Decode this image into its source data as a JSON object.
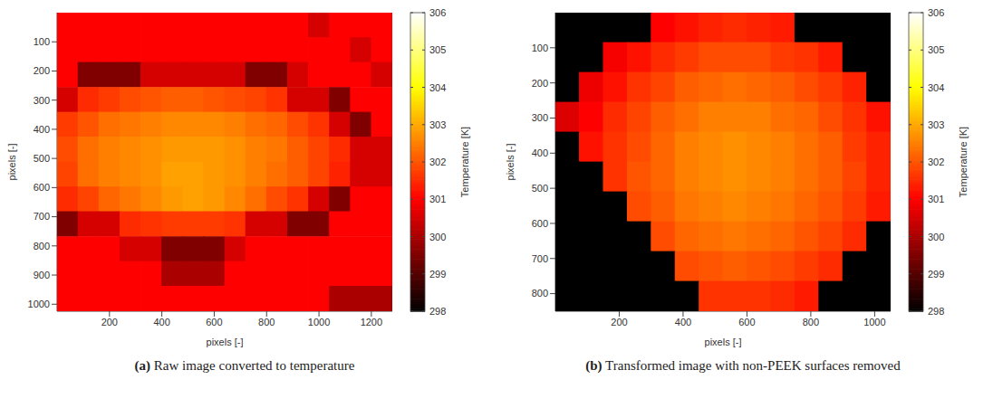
{
  "chart_data": [
    {
      "type": "heatmap",
      "label": "(a)",
      "caption": "Raw image converted to temperature",
      "x_label": "pixels [-]",
      "y_label": "pixels [-]",
      "xlim": [
        0,
        1280
      ],
      "ylim": [
        0,
        1024
      ],
      "xticks": [
        200,
        400,
        600,
        800,
        1000,
        1200
      ],
      "yticks": [
        100,
        200,
        300,
        400,
        500,
        600,
        700,
        800,
        900,
        1000
      ],
      "x": [
        40,
        120,
        200,
        280,
        360,
        440,
        520,
        600,
        680,
        760,
        840,
        920,
        1000,
        1080,
        1160,
        1240
      ],
      "y": [
        43,
        128,
        213,
        299,
        384,
        469,
        555,
        640,
        725,
        811,
        896,
        981
      ],
      "cells": [
        [
          301,
          301,
          301,
          301,
          301,
          301,
          301,
          301,
          301,
          301,
          301,
          301,
          300.5,
          301,
          301,
          301
        ],
        [
          301,
          301,
          301,
          301,
          301,
          301,
          301,
          301,
          301,
          301,
          301,
          301,
          301,
          301,
          300.5,
          301
        ],
        [
          301,
          299.5,
          299.5,
          299.5,
          300.5,
          300.5,
          300.5,
          300.5,
          300.5,
          299.5,
          299.5,
          300.5,
          301,
          301,
          301,
          300.5
        ],
        [
          300.5,
          301.5,
          301.7,
          301.9,
          302,
          302.1,
          302.1,
          302,
          301.9,
          301.8,
          301.6,
          300.5,
          300.5,
          299.5,
          301,
          301
        ],
        [
          301.7,
          302,
          302.3,
          302.4,
          302.5,
          302.6,
          302.6,
          302.6,
          302.5,
          302.3,
          302.2,
          301.9,
          301.6,
          300.5,
          299.5,
          301
        ],
        [
          301.9,
          302.3,
          302.5,
          302.6,
          302.7,
          302.8,
          302.8,
          302.8,
          302.7,
          302.5,
          302.4,
          302.1,
          301.8,
          301.5,
          300.5,
          300.5
        ],
        [
          301.8,
          302.3,
          302.5,
          302.6,
          302.7,
          302.9,
          302.9,
          302.8,
          302.7,
          302.5,
          302.3,
          302.1,
          301.8,
          301.4,
          300.5,
          300.5
        ],
        [
          301.5,
          301.8,
          302.2,
          302.4,
          302.6,
          302.8,
          302.9,
          302.8,
          302.6,
          302.3,
          301.9,
          301.6,
          300.5,
          299.5,
          301,
          301
        ],
        [
          299.5,
          300.5,
          300.5,
          301.5,
          301.6,
          301.7,
          301.7,
          301.7,
          301.6,
          300.5,
          300.5,
          299.5,
          299.5,
          301,
          301,
          301
        ],
        [
          301,
          301,
          301,
          300.5,
          300.5,
          299.5,
          299.5,
          299.5,
          300.5,
          301,
          301,
          301,
          301,
          301,
          301,
          301
        ],
        [
          301,
          301,
          301,
          301,
          301,
          300,
          300,
          300,
          301,
          301,
          301,
          301,
          301,
          301,
          301,
          301
        ],
        [
          301,
          301,
          301,
          301,
          301,
          301,
          301,
          301,
          301,
          301,
          301,
          301,
          301,
          300,
          300,
          300
        ]
      ],
      "colorbar": {
        "label": "Temperature [K]",
        "range": [
          298,
          306
        ],
        "ticks": [
          298,
          299,
          300,
          301,
          302,
          303,
          304,
          305,
          306
        ]
      }
    },
    {
      "type": "heatmap",
      "label": "(b)",
      "caption": "Transformed image with non-PEEK surfaces removed",
      "x_label": "pixels [-]",
      "y_label": "pixels [-]",
      "xlim": [
        0,
        1050
      ],
      "ylim": [
        0,
        850
      ],
      "xticks": [
        200,
        400,
        600,
        800,
        1000
      ],
      "yticks": [
        100,
        200,
        300,
        400,
        500,
        600,
        700,
        800
      ],
      "x": [
        37.5,
        112.5,
        187.5,
        262.5,
        337.5,
        412.5,
        487.5,
        562.5,
        637.5,
        712.5,
        787.5,
        862.5,
        937.5,
        1012.5
      ],
      "y": [
        42.5,
        127.5,
        212.5,
        297.5,
        382.5,
        467.5,
        552.5,
        637.5,
        722.5,
        807.5
      ],
      "cells": [
        [
          null,
          null,
          null,
          null,
          301,
          301.2,
          301.4,
          301.5,
          301.4,
          301.3,
          null,
          null,
          null,
          null
        ],
        [
          null,
          null,
          300.9,
          301.2,
          301.5,
          301.7,
          301.9,
          301.9,
          301.9,
          301.7,
          301.6,
          301.3,
          null,
          null
        ],
        [
          null,
          300.8,
          301.2,
          301.6,
          301.8,
          302.1,
          302.2,
          302.3,
          302.2,
          302.1,
          301.9,
          301.7,
          301.4,
          null
        ],
        [
          300.6,
          301,
          301.5,
          301.8,
          302.1,
          302.3,
          302.5,
          302.5,
          302.5,
          302.3,
          302.2,
          301.9,
          301.6,
          301.2
        ],
        [
          null,
          301.2,
          301.6,
          301.9,
          302.2,
          302.5,
          302.6,
          302.7,
          302.6,
          302.5,
          302.3,
          302.1,
          301.7,
          301.4
        ],
        [
          null,
          null,
          301.6,
          302,
          302.2,
          302.5,
          302.6,
          302.7,
          302.6,
          302.5,
          302.3,
          302.1,
          301.8,
          301.4
        ],
        [
          null,
          null,
          null,
          301.9,
          302.1,
          302.4,
          302.5,
          302.6,
          302.5,
          302.4,
          302.2,
          302,
          301.7,
          301.3
        ],
        [
          null,
          null,
          null,
          null,
          301.9,
          302.2,
          302.3,
          302.4,
          302.3,
          302.2,
          302,
          301.8,
          301.5,
          null
        ],
        [
          null,
          null,
          null,
          null,
          null,
          301.9,
          302,
          302.1,
          302,
          301.9,
          301.7,
          301.5,
          null,
          null
        ],
        [
          null,
          null,
          null,
          null,
          null,
          null,
          301.6,
          301.6,
          301.6,
          301.5,
          301.3,
          null,
          null,
          null
        ]
      ],
      "colorbar": {
        "label": "Temperature [K]",
        "range": [
          298,
          306
        ],
        "ticks": [
          298,
          299,
          300,
          301,
          302,
          303,
          304,
          305,
          306
        ]
      }
    }
  ]
}
